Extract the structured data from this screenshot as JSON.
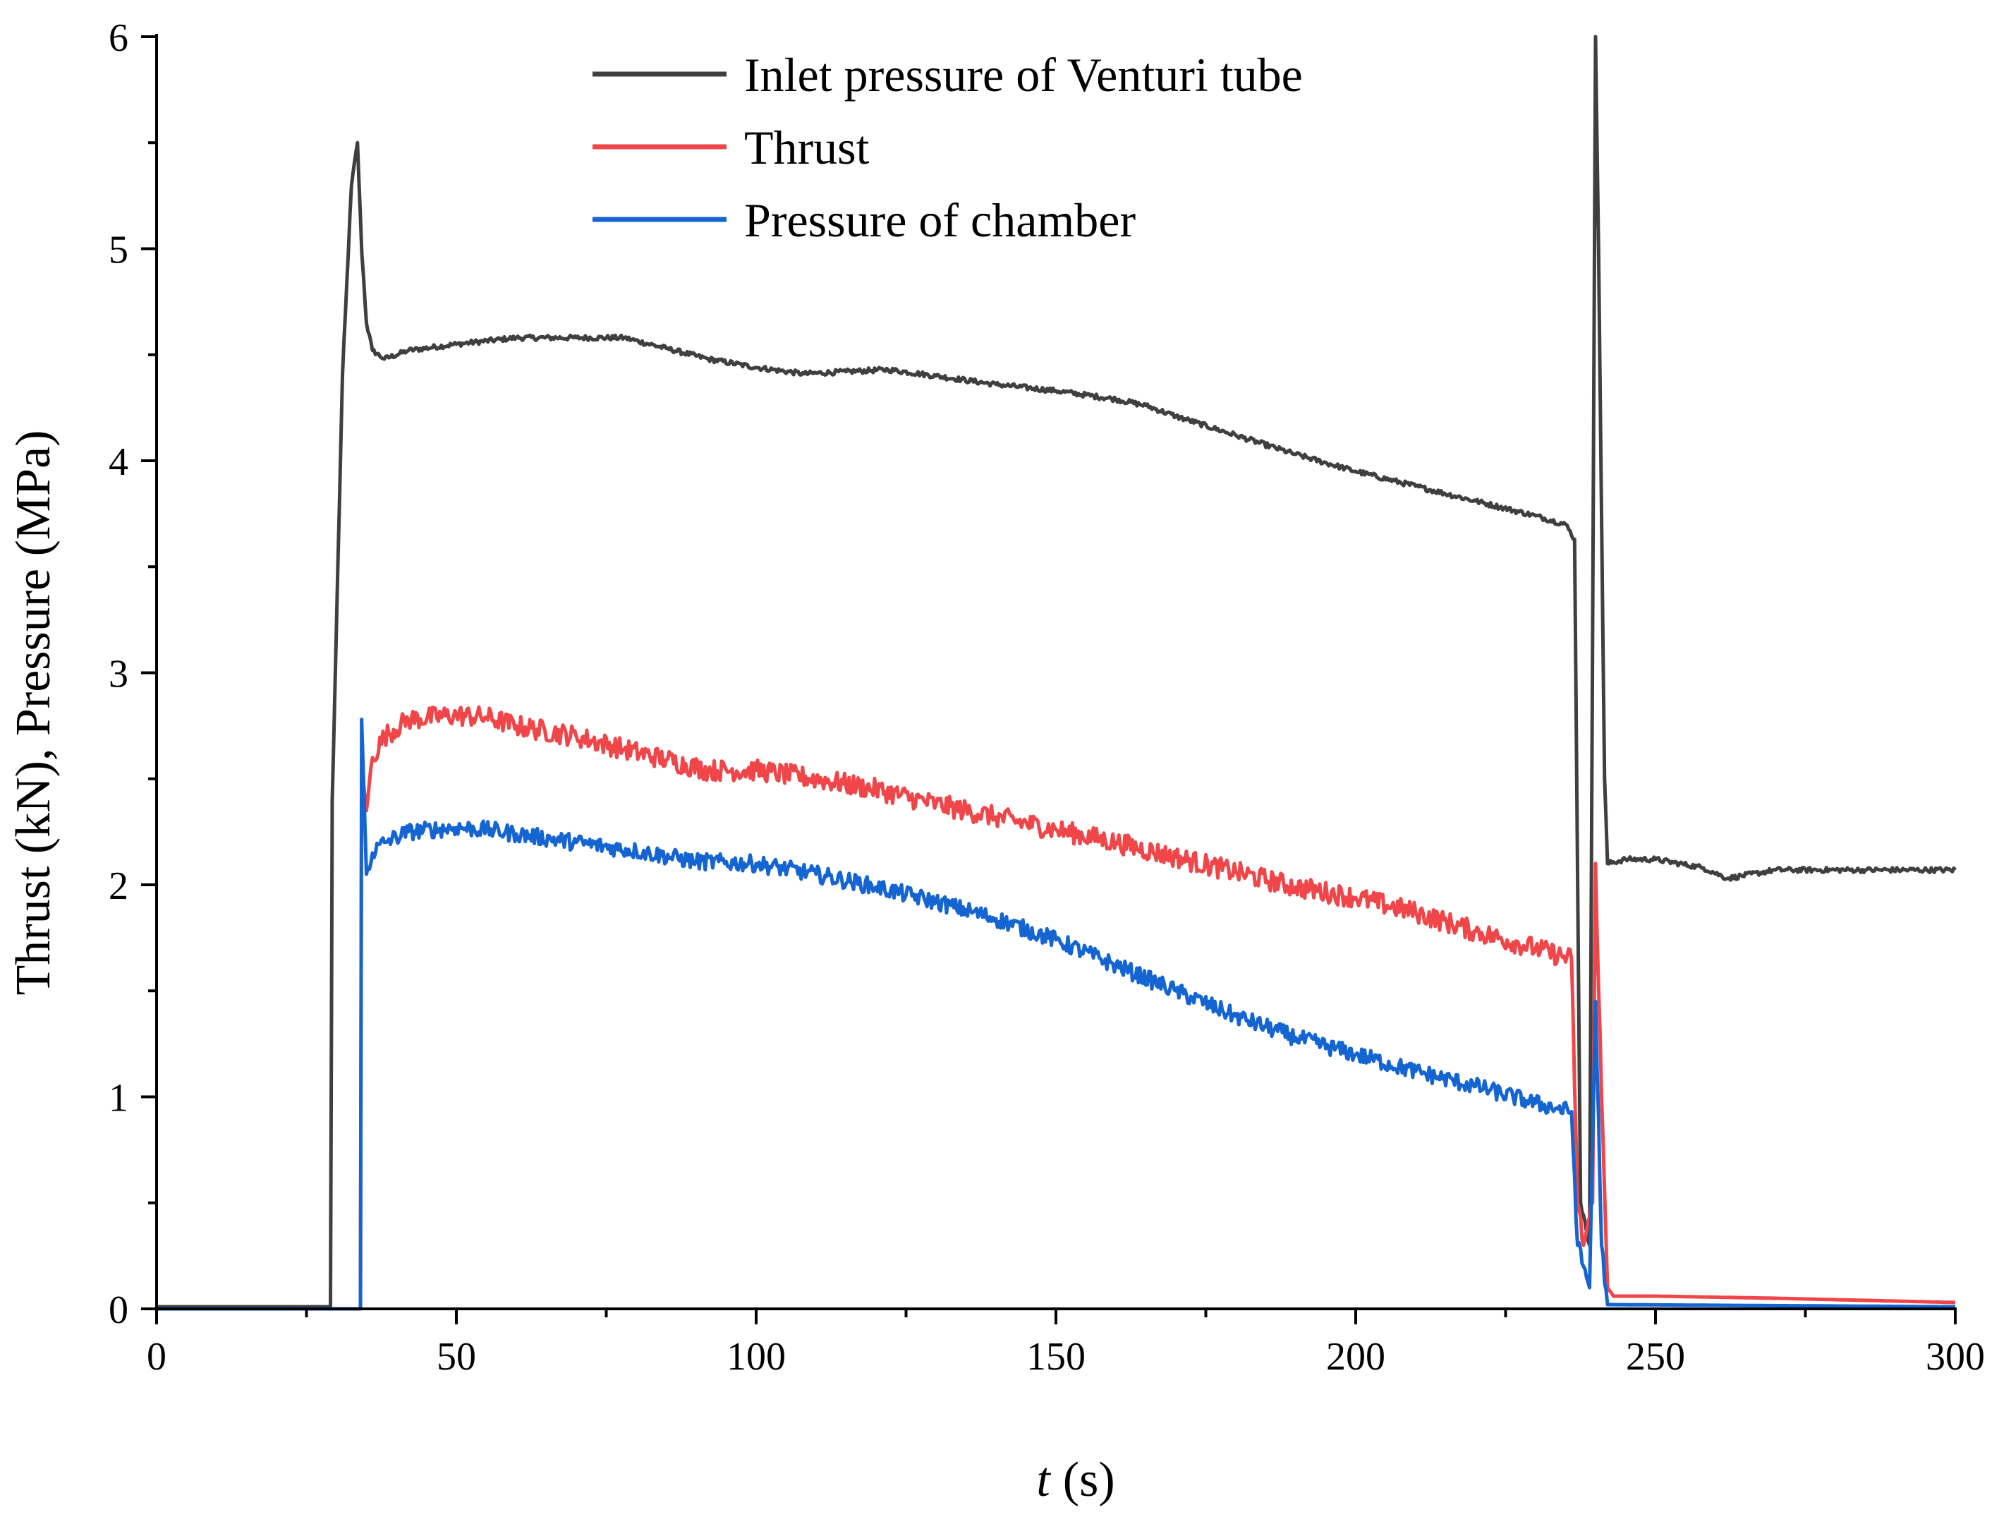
{
  "chart_data": {
    "type": "line",
    "title": "",
    "xlabel": "t",
    "xlabel_unit": "(s)",
    "ylabel": "Thrust (kN), Pressure (MPa)",
    "xlim": [
      0,
      300
    ],
    "ylim": [
      0,
      6
    ],
    "x_ticks": [
      0,
      50,
      100,
      150,
      200,
      250,
      300
    ],
    "x_tick_labels": [
      "0",
      "50",
      "100",
      "150",
      "200",
      "250",
      "300"
    ],
    "y_ticks": [
      0,
      1,
      2,
      3,
      4,
      5,
      6
    ],
    "y_tick_labels": [
      "0",
      "1",
      "2",
      "3",
      "4",
      "5",
      "6"
    ],
    "grid": false,
    "legend_position": "top-center",
    "series": [
      {
        "name": "Inlet pressure of Venturi tube",
        "color": "#3f3f3f",
        "noise": 0.012,
        "points": [
          [
            0,
            0.01
          ],
          [
            29,
            0.01
          ],
          [
            29.3,
            2.4
          ],
          [
            31,
            4.4
          ],
          [
            32.5,
            5.3
          ],
          [
            33.5,
            5.5
          ],
          [
            34.2,
            5.0
          ],
          [
            35,
            4.65
          ],
          [
            36,
            4.52
          ],
          [
            38,
            4.48
          ],
          [
            42,
            4.52
          ],
          [
            50,
            4.55
          ],
          [
            60,
            4.58
          ],
          [
            70,
            4.58
          ],
          [
            78,
            4.58
          ],
          [
            85,
            4.53
          ],
          [
            92,
            4.48
          ],
          [
            100,
            4.44
          ],
          [
            108,
            4.41
          ],
          [
            115,
            4.42
          ],
          [
            122,
            4.43
          ],
          [
            130,
            4.4
          ],
          [
            140,
            4.36
          ],
          [
            150,
            4.33
          ],
          [
            160,
            4.29
          ],
          [
            165,
            4.26
          ],
          [
            170,
            4.21
          ],
          [
            180,
            4.12
          ],
          [
            190,
            4.03
          ],
          [
            200,
            3.95
          ],
          [
            210,
            3.88
          ],
          [
            220,
            3.81
          ],
          [
            230,
            3.74
          ],
          [
            235,
            3.7
          ],
          [
            236.5,
            3.63
          ],
          [
            237.5,
            0.5
          ],
          [
            239,
            0.3
          ],
          [
            240,
            6.0
          ],
          [
            240.5,
            5.0
          ],
          [
            241.5,
            2.5
          ],
          [
            242,
            2.1
          ],
          [
            245,
            2.12
          ],
          [
            250,
            2.12
          ],
          [
            258,
            2.08
          ],
          [
            262,
            2.03
          ],
          [
            270,
            2.07
          ],
          [
            285,
            2.07
          ],
          [
            300,
            2.07
          ]
        ]
      },
      {
        "name": "Thrust",
        "color": "#f0464a",
        "noise": 0.05,
        "points": [
          [
            0,
            0.0
          ],
          [
            34,
            0.0
          ],
          [
            34.2,
            2.55
          ],
          [
            35,
            2.35
          ],
          [
            36,
            2.6
          ],
          [
            38,
            2.7
          ],
          [
            42,
            2.78
          ],
          [
            50,
            2.8
          ],
          [
            55,
            2.79
          ],
          [
            60,
            2.75
          ],
          [
            70,
            2.7
          ],
          [
            78,
            2.64
          ],
          [
            85,
            2.59
          ],
          [
            92,
            2.54
          ],
          [
            100,
            2.54
          ],
          [
            110,
            2.5
          ],
          [
            120,
            2.45
          ],
          [
            130,
            2.38
          ],
          [
            140,
            2.32
          ],
          [
            150,
            2.26
          ],
          [
            160,
            2.2
          ],
          [
            170,
            2.13
          ],
          [
            180,
            2.06
          ],
          [
            190,
            1.99
          ],
          [
            200,
            1.94
          ],
          [
            210,
            1.87
          ],
          [
            220,
            1.78
          ],
          [
            230,
            1.7
          ],
          [
            236,
            1.65
          ],
          [
            237,
            0.5
          ],
          [
            238,
            0.3
          ],
          [
            239.5,
            0.5
          ],
          [
            240,
            2.1
          ],
          [
            241,
            1.0
          ],
          [
            242,
            0.1
          ],
          [
            243,
            0.06
          ],
          [
            250,
            0.06
          ],
          [
            270,
            0.05
          ],
          [
            300,
            0.03
          ]
        ]
      },
      {
        "name": "Pressure of chamber",
        "color": "#1464d2",
        "noise": 0.04,
        "points": [
          [
            0,
            0.0
          ],
          [
            34,
            0.0
          ],
          [
            34.2,
            2.78
          ],
          [
            35,
            2.05
          ],
          [
            36,
            2.15
          ],
          [
            38,
            2.2
          ],
          [
            42,
            2.25
          ],
          [
            50,
            2.27
          ],
          [
            55,
            2.26
          ],
          [
            60,
            2.24
          ],
          [
            70,
            2.2
          ],
          [
            80,
            2.16
          ],
          [
            90,
            2.11
          ],
          [
            100,
            2.1
          ],
          [
            110,
            2.05
          ],
          [
            120,
            1.99
          ],
          [
            130,
            1.92
          ],
          [
            140,
            1.84
          ],
          [
            150,
            1.74
          ],
          [
            160,
            1.62
          ],
          [
            170,
            1.5
          ],
          [
            180,
            1.38
          ],
          [
            190,
            1.28
          ],
          [
            200,
            1.2
          ],
          [
            210,
            1.12
          ],
          [
            220,
            1.05
          ],
          [
            230,
            0.97
          ],
          [
            236,
            0.93
          ],
          [
            237,
            0.3
          ],
          [
            238,
            0.2
          ],
          [
            239,
            0.1
          ],
          [
            240,
            1.45
          ],
          [
            241,
            0.3
          ],
          [
            242,
            0.02
          ],
          [
            300,
            0.01
          ]
        ]
      }
    ]
  }
}
